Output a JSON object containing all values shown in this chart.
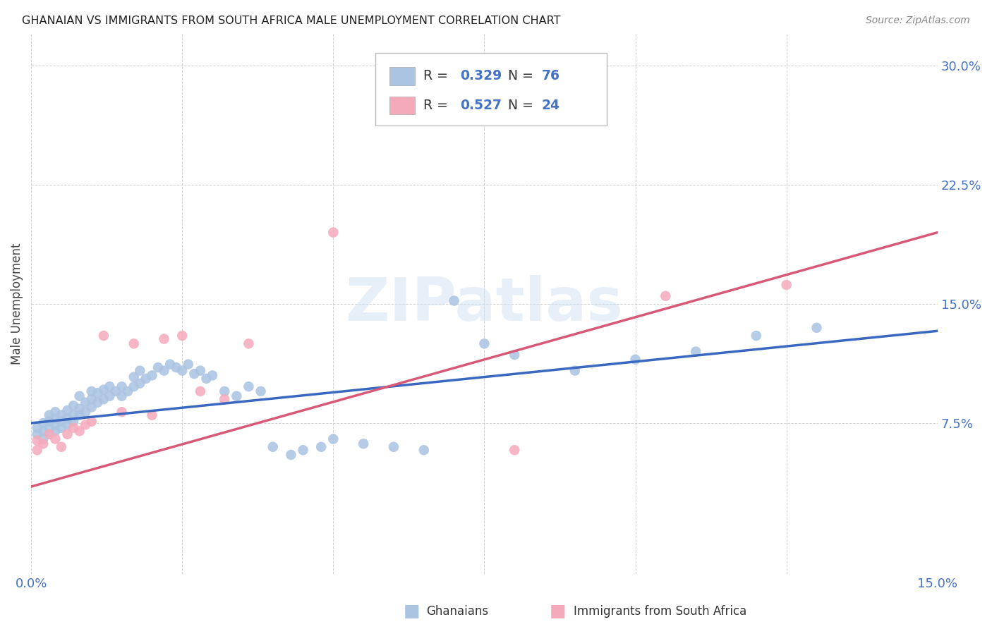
{
  "title": "GHANAIAN VS IMMIGRANTS FROM SOUTH AFRICA MALE UNEMPLOYMENT CORRELATION CHART",
  "source": "Source: ZipAtlas.com",
  "ylabel": "Male Unemployment",
  "xlim": [
    0.0,
    0.15
  ],
  "ylim": [
    -0.02,
    0.32
  ],
  "xtick_vals": [
    0.0,
    0.025,
    0.05,
    0.075,
    0.1,
    0.125,
    0.15
  ],
  "xtick_labels": [
    "0.0%",
    "",
    "",
    "",
    "",
    "",
    "15.0%"
  ],
  "ytick_vals": [
    0.075,
    0.15,
    0.225,
    0.3
  ],
  "ytick_labels": [
    "7.5%",
    "15.0%",
    "22.5%",
    "30.0%"
  ],
  "ghanaians_color": "#aac4e2",
  "immigrants_color": "#f5aabb",
  "ghanaians_line_color": "#3a68c0",
  "immigrants_line_color": "#d85878",
  "tick_color": "#4472c4",
  "R_ghanaians": 0.329,
  "N_ghanaians": 76,
  "R_immigrants": 0.527,
  "N_immigrants": 24,
  "watermark": "ZIPatlas",
  "background": "#ffffff",
  "grid_color": "#cccccc",
  "ghanaians_x": [
    0.001,
    0.001,
    0.002,
    0.002,
    0.002,
    0.003,
    0.003,
    0.003,
    0.003,
    0.004,
    0.004,
    0.004,
    0.004,
    0.005,
    0.005,
    0.005,
    0.006,
    0.006,
    0.006,
    0.007,
    0.007,
    0.007,
    0.008,
    0.008,
    0.008,
    0.009,
    0.009,
    0.01,
    0.01,
    0.01,
    0.011,
    0.011,
    0.012,
    0.012,
    0.013,
    0.013,
    0.014,
    0.015,
    0.015,
    0.016,
    0.017,
    0.017,
    0.018,
    0.018,
    0.019,
    0.02,
    0.021,
    0.022,
    0.023,
    0.024,
    0.025,
    0.026,
    0.027,
    0.028,
    0.029,
    0.03,
    0.032,
    0.034,
    0.036,
    0.038,
    0.04,
    0.043,
    0.045,
    0.048,
    0.05,
    0.055,
    0.06,
    0.065,
    0.07,
    0.075,
    0.08,
    0.09,
    0.1,
    0.11,
    0.12,
    0.13
  ],
  "ghanaians_y": [
    0.068,
    0.072,
    0.065,
    0.07,
    0.075,
    0.068,
    0.072,
    0.076,
    0.08,
    0.07,
    0.074,
    0.078,
    0.082,
    0.072,
    0.076,
    0.08,
    0.074,
    0.078,
    0.083,
    0.076,
    0.08,
    0.086,
    0.08,
    0.084,
    0.092,
    0.082,
    0.088,
    0.085,
    0.09,
    0.095,
    0.088,
    0.094,
    0.09,
    0.096,
    0.092,
    0.098,
    0.095,
    0.092,
    0.098,
    0.095,
    0.098,
    0.104,
    0.1,
    0.108,
    0.103,
    0.105,
    0.11,
    0.108,
    0.112,
    0.11,
    0.108,
    0.112,
    0.106,
    0.108,
    0.103,
    0.105,
    0.095,
    0.092,
    0.098,
    0.095,
    0.06,
    0.055,
    0.058,
    0.06,
    0.065,
    0.062,
    0.06,
    0.058,
    0.152,
    0.125,
    0.118,
    0.108,
    0.115,
    0.12,
    0.13,
    0.135
  ],
  "immigrants_x": [
    0.001,
    0.001,
    0.002,
    0.003,
    0.004,
    0.005,
    0.006,
    0.007,
    0.008,
    0.009,
    0.01,
    0.012,
    0.015,
    0.017,
    0.02,
    0.022,
    0.025,
    0.028,
    0.032,
    0.036,
    0.05,
    0.08,
    0.105,
    0.125
  ],
  "immigrants_y": [
    0.058,
    0.064,
    0.062,
    0.068,
    0.065,
    0.06,
    0.068,
    0.072,
    0.07,
    0.074,
    0.076,
    0.13,
    0.082,
    0.125,
    0.08,
    0.128,
    0.13,
    0.095,
    0.09,
    0.125,
    0.195,
    0.058,
    0.155,
    0.162
  ],
  "blue_line_x0": 0.0,
  "blue_line_y0": 0.075,
  "blue_line_x1": 0.15,
  "blue_line_y1": 0.133,
  "pink_line_x0": 0.0,
  "pink_line_y0": 0.035,
  "pink_line_x1": 0.15,
  "pink_line_y1": 0.195
}
